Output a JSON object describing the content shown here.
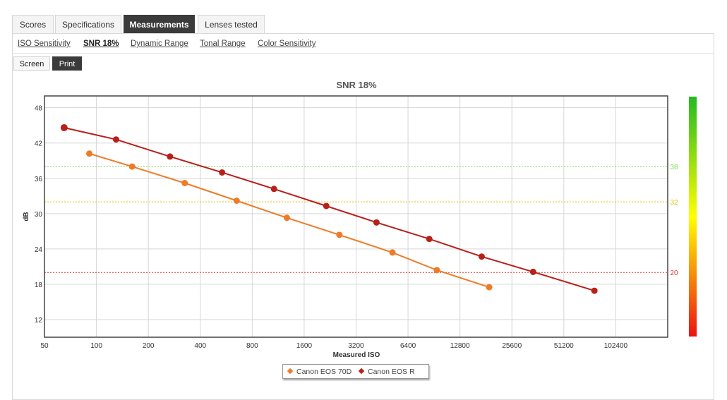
{
  "tabs": [
    {
      "label": "Scores"
    },
    {
      "label": "Specifications"
    },
    {
      "label": "Measurements"
    },
    {
      "label": "Lenses tested"
    }
  ],
  "active_tab": "Measurements",
  "subnav": [
    {
      "label": "ISO Sensitivity"
    },
    {
      "label": "SNR 18%"
    },
    {
      "label": "Dynamic Range"
    },
    {
      "label": "Tonal Range"
    },
    {
      "label": "Color Sensitivity"
    }
  ],
  "active_subnav": "SNR 18%",
  "view_buttons": {
    "screen": "Screen",
    "print": "Print"
  },
  "active_view": "Print",
  "chart_data": {
    "type": "line",
    "title": "SNR 18%",
    "xlabel": "Measured ISO",
    "ylabel": "dB",
    "x_scale": "log2",
    "xlim": [
      50,
      204800
    ],
    "ylim": [
      9,
      50
    ],
    "x_ticks": [
      50,
      100,
      200,
      400,
      800,
      1600,
      3200,
      6400,
      12800,
      25600,
      51200,
      102400
    ],
    "y_ticks": [
      12,
      18,
      24,
      30,
      36,
      42,
      48
    ],
    "grid": true,
    "legend_position": "bottom-center",
    "series": [
      {
        "name": "Canon EOS 70D",
        "color": "#ee7b27",
        "x": [
          91,
          161,
          325,
          650,
          1270,
          2560,
          5200,
          9400,
          18900
        ],
        "y": [
          40.2,
          38.0,
          35.2,
          32.2,
          29.3,
          26.4,
          23.4,
          20.4,
          17.5
        ]
      },
      {
        "name": "Canon EOS R",
        "color": "#b8201a",
        "x": [
          65,
          130,
          267,
          535,
          1070,
          2150,
          4200,
          8500,
          17100,
          34000,
          77000
        ],
        "y": [
          44.6,
          42.6,
          39.7,
          37.0,
          34.2,
          31.3,
          28.5,
          25.7,
          22.7,
          20.1,
          16.9
        ]
      }
    ],
    "reference_lines": [
      {
        "value": 38,
        "label": "38",
        "color": "#7ed957"
      },
      {
        "value": 32,
        "label": "32",
        "color": "#e0c300"
      },
      {
        "value": 20,
        "label": "20",
        "color": "#e23a2c"
      }
    ],
    "color_scale": {
      "top": "#22bb22",
      "middle": "#ffff00",
      "bottom": "#ee1111"
    }
  }
}
